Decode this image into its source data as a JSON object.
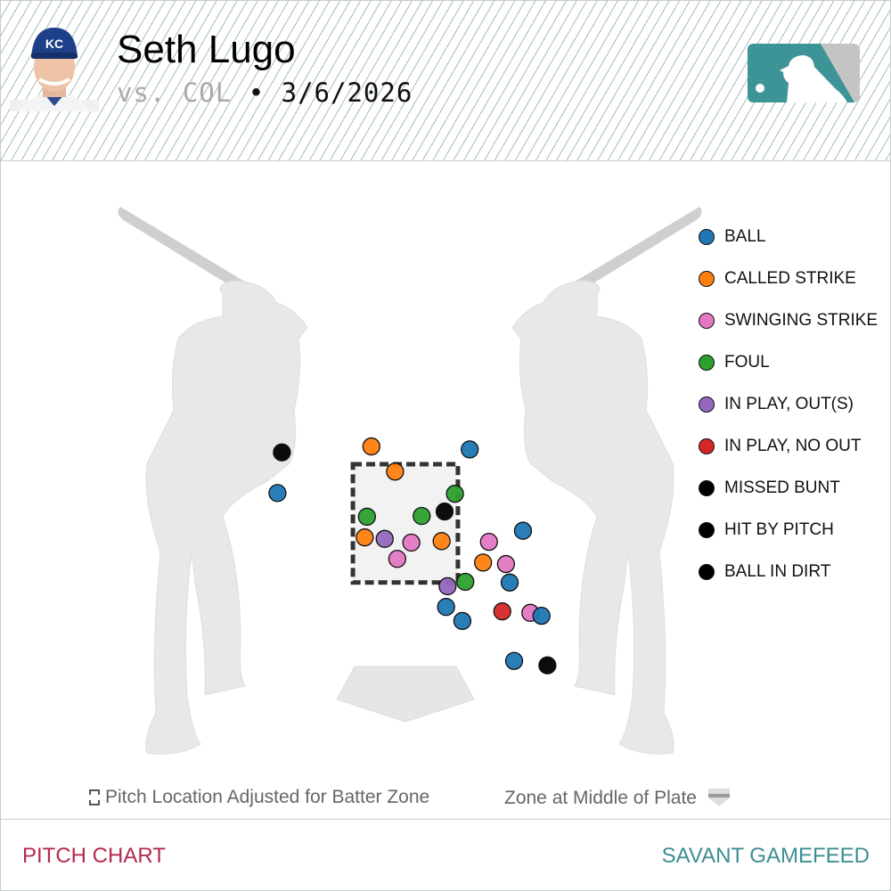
{
  "header": {
    "player_name": "Seth Lugo",
    "opponent": "vs. COL",
    "separator": "•",
    "date": "3/6/2026",
    "cap_logo": "KC"
  },
  "colors": {
    "BALL": "#1f77b4",
    "CALLED STRIKE": "#ff7f0e",
    "SWINGING STRIKE": "#e377c2",
    "FOUL": "#2ca02c",
    "IN PLAY, OUT(S)": "#9467bd",
    "IN PLAY, NO OUT": "#d62728",
    "MISSED BUNT": "#000000",
    "HIT BY PITCH": "#000000",
    "BALL IN DIRT": "#000000",
    "brand_teal": "#3d8f91",
    "brand_crimson": "#b5294e"
  },
  "legend": [
    {
      "label": "BALL",
      "color": "#1f77b4"
    },
    {
      "label": "CALLED STRIKE",
      "color": "#ff7f0e"
    },
    {
      "label": "SWINGING STRIKE",
      "color": "#e377c2"
    },
    {
      "label": "FOUL",
      "color": "#2ca02c"
    },
    {
      "label": "IN PLAY, OUT(S)",
      "color": "#9467bd"
    },
    {
      "label": "IN PLAY, NO OUT",
      "color": "#d62728"
    },
    {
      "label": "MISSED BUNT",
      "color": "#000000"
    },
    {
      "label": "HIT BY PITCH",
      "color": "#000000"
    },
    {
      "label": "BALL IN DIRT",
      "color": "#000000"
    }
  ],
  "chart_data": {
    "type": "scatter",
    "title": "",
    "xlabel": "",
    "ylabel": "",
    "grid": false,
    "legend_placement": "right",
    "strike_zone": {
      "x": [
        -0.71,
        0.71
      ],
      "z": [
        1.6,
        3.2
      ]
    },
    "points": [
      {
        "x": -1.67,
        "z": 3.36,
        "result": "HIT BY PITCH"
      },
      {
        "x": -0.46,
        "z": 3.44,
        "result": "CALLED STRIKE"
      },
      {
        "x": 0.87,
        "z": 3.4,
        "result": "BALL"
      },
      {
        "x": -0.14,
        "z": 3.1,
        "result": "CALLED STRIKE"
      },
      {
        "x": -1.73,
        "z": 2.81,
        "result": "BALL"
      },
      {
        "x": 0.67,
        "z": 2.8,
        "result": "FOUL"
      },
      {
        "x": 0.53,
        "z": 2.56,
        "result": "MISSED BUNT"
      },
      {
        "x": -0.52,
        "z": 2.49,
        "result": "FOUL"
      },
      {
        "x": 0.22,
        "z": 2.5,
        "result": "FOUL"
      },
      {
        "x": -0.55,
        "z": 2.21,
        "result": "CALLED STRIKE"
      },
      {
        "x": -0.28,
        "z": 2.19,
        "result": "IN PLAY, OUT(S)"
      },
      {
        "x": 0.08,
        "z": 2.14,
        "result": "SWINGING STRIKE"
      },
      {
        "x": 0.49,
        "z": 2.16,
        "result": "CALLED STRIKE"
      },
      {
        "x": -0.11,
        "z": 1.92,
        "result": "SWINGING STRIKE"
      },
      {
        "x": 1.59,
        "z": 2.3,
        "result": "BALL"
      },
      {
        "x": 1.13,
        "z": 2.15,
        "result": "SWINGING STRIKE"
      },
      {
        "x": 1.05,
        "z": 1.87,
        "result": "CALLED STRIKE"
      },
      {
        "x": 1.36,
        "z": 1.85,
        "result": "SWINGING STRIKE"
      },
      {
        "x": 0.57,
        "z": 1.55,
        "result": "IN PLAY, OUT(S)"
      },
      {
        "x": 0.81,
        "z": 1.61,
        "result": "FOUL"
      },
      {
        "x": 1.41,
        "z": 1.6,
        "result": "BALL"
      },
      {
        "x": 0.55,
        "z": 1.27,
        "result": "BALL"
      },
      {
        "x": 0.77,
        "z": 1.08,
        "result": "BALL"
      },
      {
        "x": 1.31,
        "z": 1.21,
        "result": "IN PLAY, NO OUT"
      },
      {
        "x": 1.69,
        "z": 1.19,
        "result": "SWINGING STRIKE"
      },
      {
        "x": 1.84,
        "z": 1.15,
        "result": "BALL"
      },
      {
        "x": 1.47,
        "z": 0.54,
        "result": "BALL"
      },
      {
        "x": 1.92,
        "z": 0.48,
        "result": "BALL IN DIRT"
      }
    ]
  },
  "notes": {
    "adjusted": "Pitch Location Adjusted for Batter Zone",
    "middle": "Zone at Middle of Plate"
  },
  "footer": {
    "left": "PITCH CHART",
    "right": "SAVANT GAMEFEED"
  }
}
